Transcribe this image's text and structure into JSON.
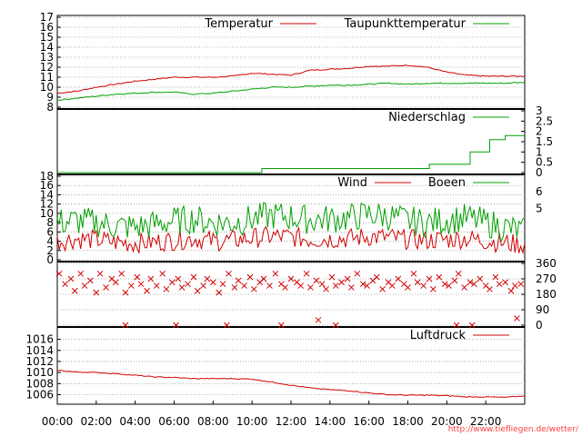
{
  "credit": "http://www.tiefliegen.de/wetter/",
  "colors": {
    "red": "#d00000",
    "green": "#00a000",
    "grid": "#a0a0a0",
    "axis": "#000000"
  },
  "x_axis": {
    "range": [
      0,
      24
    ],
    "tick_values": [
      0,
      2,
      4,
      6,
      8,
      10,
      12,
      14,
      16,
      18,
      20,
      22
    ],
    "tick_labels": [
      "00:00",
      "02:00",
      "04:00",
      "06:00",
      "08:00",
      "10:00",
      "12:00",
      "14:00",
      "16:00",
      "18:00",
      "20:00",
      "22:00"
    ]
  },
  "chart_data": [
    {
      "type": "line",
      "id": "temp",
      "ylim": [
        8,
        17
      ],
      "grid": true,
      "yticks": [
        8,
        9,
        10,
        11,
        12,
        13,
        14,
        15,
        16,
        17
      ],
      "ytick_labels": [
        "8",
        "9",
        "10",
        "11",
        "12",
        "13",
        "14",
        "15",
        "16",
        "17"
      ],
      "legend_placement": "top-right",
      "series": [
        {
          "name": "Temperatur",
          "color": "#d00000",
          "x": [
            0,
            1,
            2,
            3,
            4,
            5,
            6,
            7,
            8,
            9,
            10,
            11,
            12,
            13,
            14,
            15,
            16,
            17,
            18,
            19,
            20,
            21,
            22,
            23,
            24
          ],
          "y": [
            9.4,
            9.6,
            10.0,
            10.3,
            10.6,
            10.8,
            11.0,
            11.0,
            11.0,
            11.1,
            11.4,
            11.3,
            11.2,
            11.7,
            11.8,
            11.9,
            12.1,
            12.1,
            12.2,
            12.0,
            11.5,
            11.2,
            11.1,
            11.1,
            11.1
          ]
        },
        {
          "name": "Taupunkttemperatur",
          "color": "#00a000",
          "x": [
            0,
            1,
            2,
            3,
            4,
            5,
            6,
            7,
            8,
            9,
            10,
            11,
            12,
            13,
            14,
            15,
            16,
            17,
            18,
            19,
            20,
            21,
            22,
            23,
            24
          ],
          "y": [
            8.7,
            8.9,
            9.1,
            9.3,
            9.4,
            9.5,
            9.5,
            9.3,
            9.4,
            9.6,
            9.8,
            10.0,
            10.0,
            10.1,
            10.2,
            10.2,
            10.3,
            10.4,
            10.3,
            10.4,
            10.4,
            10.4,
            10.4,
            10.4,
            10.5
          ]
        }
      ]
    },
    {
      "type": "line",
      "id": "rain",
      "ylim": [
        0,
        3
      ],
      "grid": false,
      "y_axis_side": "right",
      "yticks": [
        0,
        0.5,
        1,
        1.5,
        2,
        2.5,
        3
      ],
      "ytick_labels": [
        "0",
        "0.5",
        "1",
        "1.5",
        "2",
        "2.5",
        "3"
      ],
      "legend_placement": "top-right",
      "series": [
        {
          "name": "Niederschlag",
          "color": "#00a000",
          "step": true,
          "x": [
            0,
            10.5,
            10.5,
            19.1,
            19.1,
            21.2,
            21.2,
            22.2,
            22.2,
            23.0,
            23.0,
            24
          ],
          "y": [
            0,
            0,
            0.2,
            0.2,
            0.4,
            0.4,
            1.0,
            1.0,
            1.6,
            1.6,
            1.8,
            1.8
          ]
        }
      ]
    },
    {
      "type": "line",
      "id": "wind",
      "ylim": [
        0,
        18
      ],
      "grid": true,
      "yticks": [
        0,
        2,
        4,
        6,
        8,
        10,
        12,
        14,
        16,
        18
      ],
      "ytick_labels": [
        "0",
        "2",
        "4",
        "6",
        "8",
        "10",
        "12",
        "14",
        "16",
        "18"
      ],
      "right_axis_labels": [
        "6",
        "5"
      ],
      "right_axis_values": [
        14.7,
        11.1
      ],
      "legend_placement": "top-right",
      "series": [
        {
          "name": "Wind",
          "color": "#d00000",
          "x": [
            0,
            1,
            2,
            3,
            4,
            5,
            6,
            7,
            8,
            9,
            10,
            11,
            12,
            13,
            14,
            15,
            16,
            17,
            18,
            19,
            20,
            21,
            22,
            23,
            24
          ],
          "y": [
            4.0,
            4.5,
            4.3,
            3.8,
            3.6,
            3.8,
            4.2,
            4.6,
            4.0,
            4.2,
            4.7,
            5.1,
            4.9,
            4.4,
            4.5,
            4.6,
            5.0,
            4.8,
            4.4,
            4.2,
            4.4,
            4.6,
            4.1,
            3.6,
            3.2
          ],
          "amplitude": 2.2
        },
        {
          "name": "Boeen",
          "color": "#00a000",
          "x": [
            0,
            1,
            2,
            3,
            4,
            5,
            6,
            7,
            8,
            9,
            10,
            11,
            12,
            13,
            14,
            15,
            16,
            17,
            18,
            19,
            20,
            21,
            22,
            23,
            24
          ],
          "y": [
            8.0,
            8.4,
            8.0,
            7.3,
            7.0,
            7.6,
            8.4,
            8.8,
            8.0,
            8.0,
            8.8,
            9.6,
            9.2,
            8.6,
            8.8,
            9.0,
            9.8,
            9.4,
            8.4,
            8.0,
            8.6,
            9.0,
            8.0,
            7.0,
            6.0
          ],
          "amplitude": 3.2
        }
      ]
    },
    {
      "type": "scatter",
      "id": "direction",
      "ylim": [
        0,
        360
      ],
      "grid": true,
      "y_axis_side": "right",
      "yticks": [
        0,
        90,
        180,
        270,
        360
      ],
      "ytick_labels": [
        "0",
        "90",
        "180",
        "270",
        "360"
      ],
      "marker": "x",
      "series": [
        {
          "name": "",
          "color": "#d00000",
          "x": [
            0.1,
            0.4,
            0.7,
            0.9,
            1.2,
            1.4,
            1.7,
            2.0,
            2.2,
            2.5,
            2.8,
            3.0,
            3.3,
            3.5,
            3.8,
            4.1,
            4.3,
            4.6,
            4.8,
            5.1,
            5.4,
            5.6,
            5.9,
            6.2,
            6.4,
            6.7,
            7.0,
            7.2,
            7.5,
            7.7,
            8.0,
            8.3,
            8.5,
            8.8,
            9.1,
            9.3,
            9.6,
            9.9,
            10.1,
            10.4,
            10.6,
            10.9,
            11.2,
            11.5,
            11.7,
            12.0,
            12.3,
            12.5,
            12.8,
            13.0,
            13.3,
            13.6,
            13.8,
            14.1,
            14.3,
            14.6,
            14.9,
            15.1,
            15.4,
            15.7,
            15.9,
            16.2,
            16.4,
            16.7,
            17.0,
            17.2,
            17.5,
            17.8,
            18.0,
            18.3,
            18.5,
            18.8,
            19.1,
            19.3,
            19.6,
            19.9,
            20.1,
            20.4,
            20.6,
            20.9,
            21.2,
            21.4,
            21.7,
            22.0,
            22.2,
            22.5,
            22.7,
            23.0,
            23.3,
            23.5,
            23.8
          ],
          "y": [
            300,
            240,
            270,
            200,
            300,
            230,
            260,
            190,
            300,
            220,
            270,
            250,
            300,
            190,
            230,
            280,
            240,
            200,
            270,
            230,
            300,
            210,
            250,
            270,
            220,
            240,
            280,
            200,
            230,
            270,
            250,
            190,
            240,
            300,
            220,
            260,
            230,
            280,
            210,
            250,
            270,
            230,
            300,
            240,
            220,
            270,
            250,
            230,
            300,
            220,
            260,
            240,
            210,
            280,
            230,
            250,
            270,
            220,
            300,
            240,
            230,
            260,
            280,
            210,
            250,
            230,
            270,
            240,
            220,
            300,
            250,
            230,
            270,
            210,
            280,
            240,
            230,
            260,
            300,
            220,
            250,
            240,
            270,
            230,
            210,
            280,
            240,
            250,
            200,
            230,
            240
          ]
        },
        {
          "name": "",
          "color": "#d00000",
          "x": [
            3.5,
            6.1,
            8.7,
            11.5,
            13.4,
            14.3,
            20.5,
            21.3,
            23.6
          ],
          "y": [
            0,
            0,
            0,
            0,
            30,
            0,
            0,
            0,
            40
          ]
        }
      ]
    },
    {
      "type": "line",
      "id": "pressure",
      "ylim": [
        1004.6,
        1017.9
      ],
      "grid": true,
      "yticks": [
        1006,
        1008,
        1010,
        1012,
        1014,
        1016
      ],
      "ytick_labels": [
        "1006",
        "1008",
        "1010",
        "1012",
        "1014",
        "1016"
      ],
      "legend_placement": "top-right",
      "series": [
        {
          "name": "Luftdruck",
          "color": "#d00000",
          "x": [
            0,
            1,
            2,
            3,
            4,
            5,
            6,
            7,
            8,
            9,
            10,
            11,
            12,
            13,
            14,
            15,
            16,
            17,
            18,
            19,
            20,
            21,
            22,
            23,
            24
          ],
          "y": [
            1010.4,
            1010.1,
            1010.0,
            1009.8,
            1009.5,
            1009.2,
            1009.1,
            1008.9,
            1008.9,
            1008.9,
            1008.8,
            1008.3,
            1007.7,
            1007.2,
            1006.9,
            1006.7,
            1006.3,
            1006.0,
            1005.9,
            1005.9,
            1005.8,
            1005.6,
            1005.6,
            1005.5,
            1005.8
          ]
        }
      ]
    }
  ]
}
